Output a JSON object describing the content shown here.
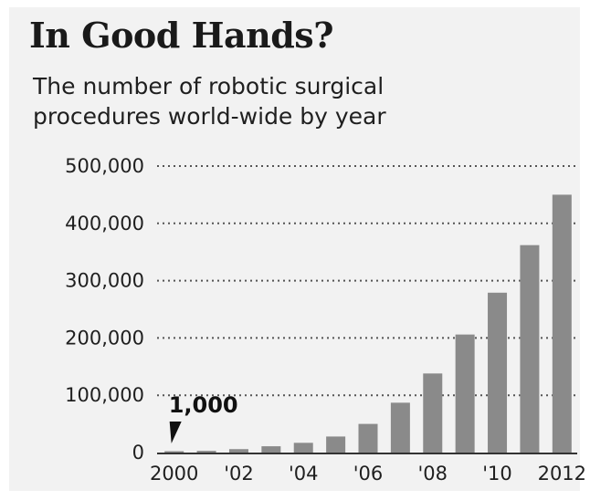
{
  "chart_data": {
    "type": "bar",
    "title": "In Good Hands?",
    "subtitle_lines": [
      "The number of robotic surgical",
      "procedures world-wide by year"
    ],
    "xlabel": "",
    "ylabel": "",
    "ylim": [
      0,
      500000
    ],
    "yticks": [
      0,
      100000,
      200000,
      300000,
      400000,
      500000
    ],
    "ytick_labels": [
      "0",
      "100,000",
      "200,000",
      "300,000",
      "400,000",
      "500,000"
    ],
    "categories": [
      "2000",
      "2001",
      "2002",
      "2003",
      "2004",
      "2005",
      "2006",
      "2007",
      "2008",
      "2009",
      "2010",
      "2011",
      "2012"
    ],
    "xtick_labels": [
      "2000",
      "",
      "'02",
      "",
      "'04",
      "",
      "'06",
      "",
      "'08",
      "",
      "'10",
      "",
      "2012"
    ],
    "values": [
      1000,
      3000,
      6000,
      11000,
      17000,
      28000,
      50000,
      87000,
      138000,
      206000,
      279000,
      362000,
      450000
    ],
    "grid": "dotted horizontal",
    "bar_color": "#8a8a8a",
    "annotations": [
      {
        "text": "1,000",
        "category": "2000",
        "value": 1000
      }
    ]
  }
}
